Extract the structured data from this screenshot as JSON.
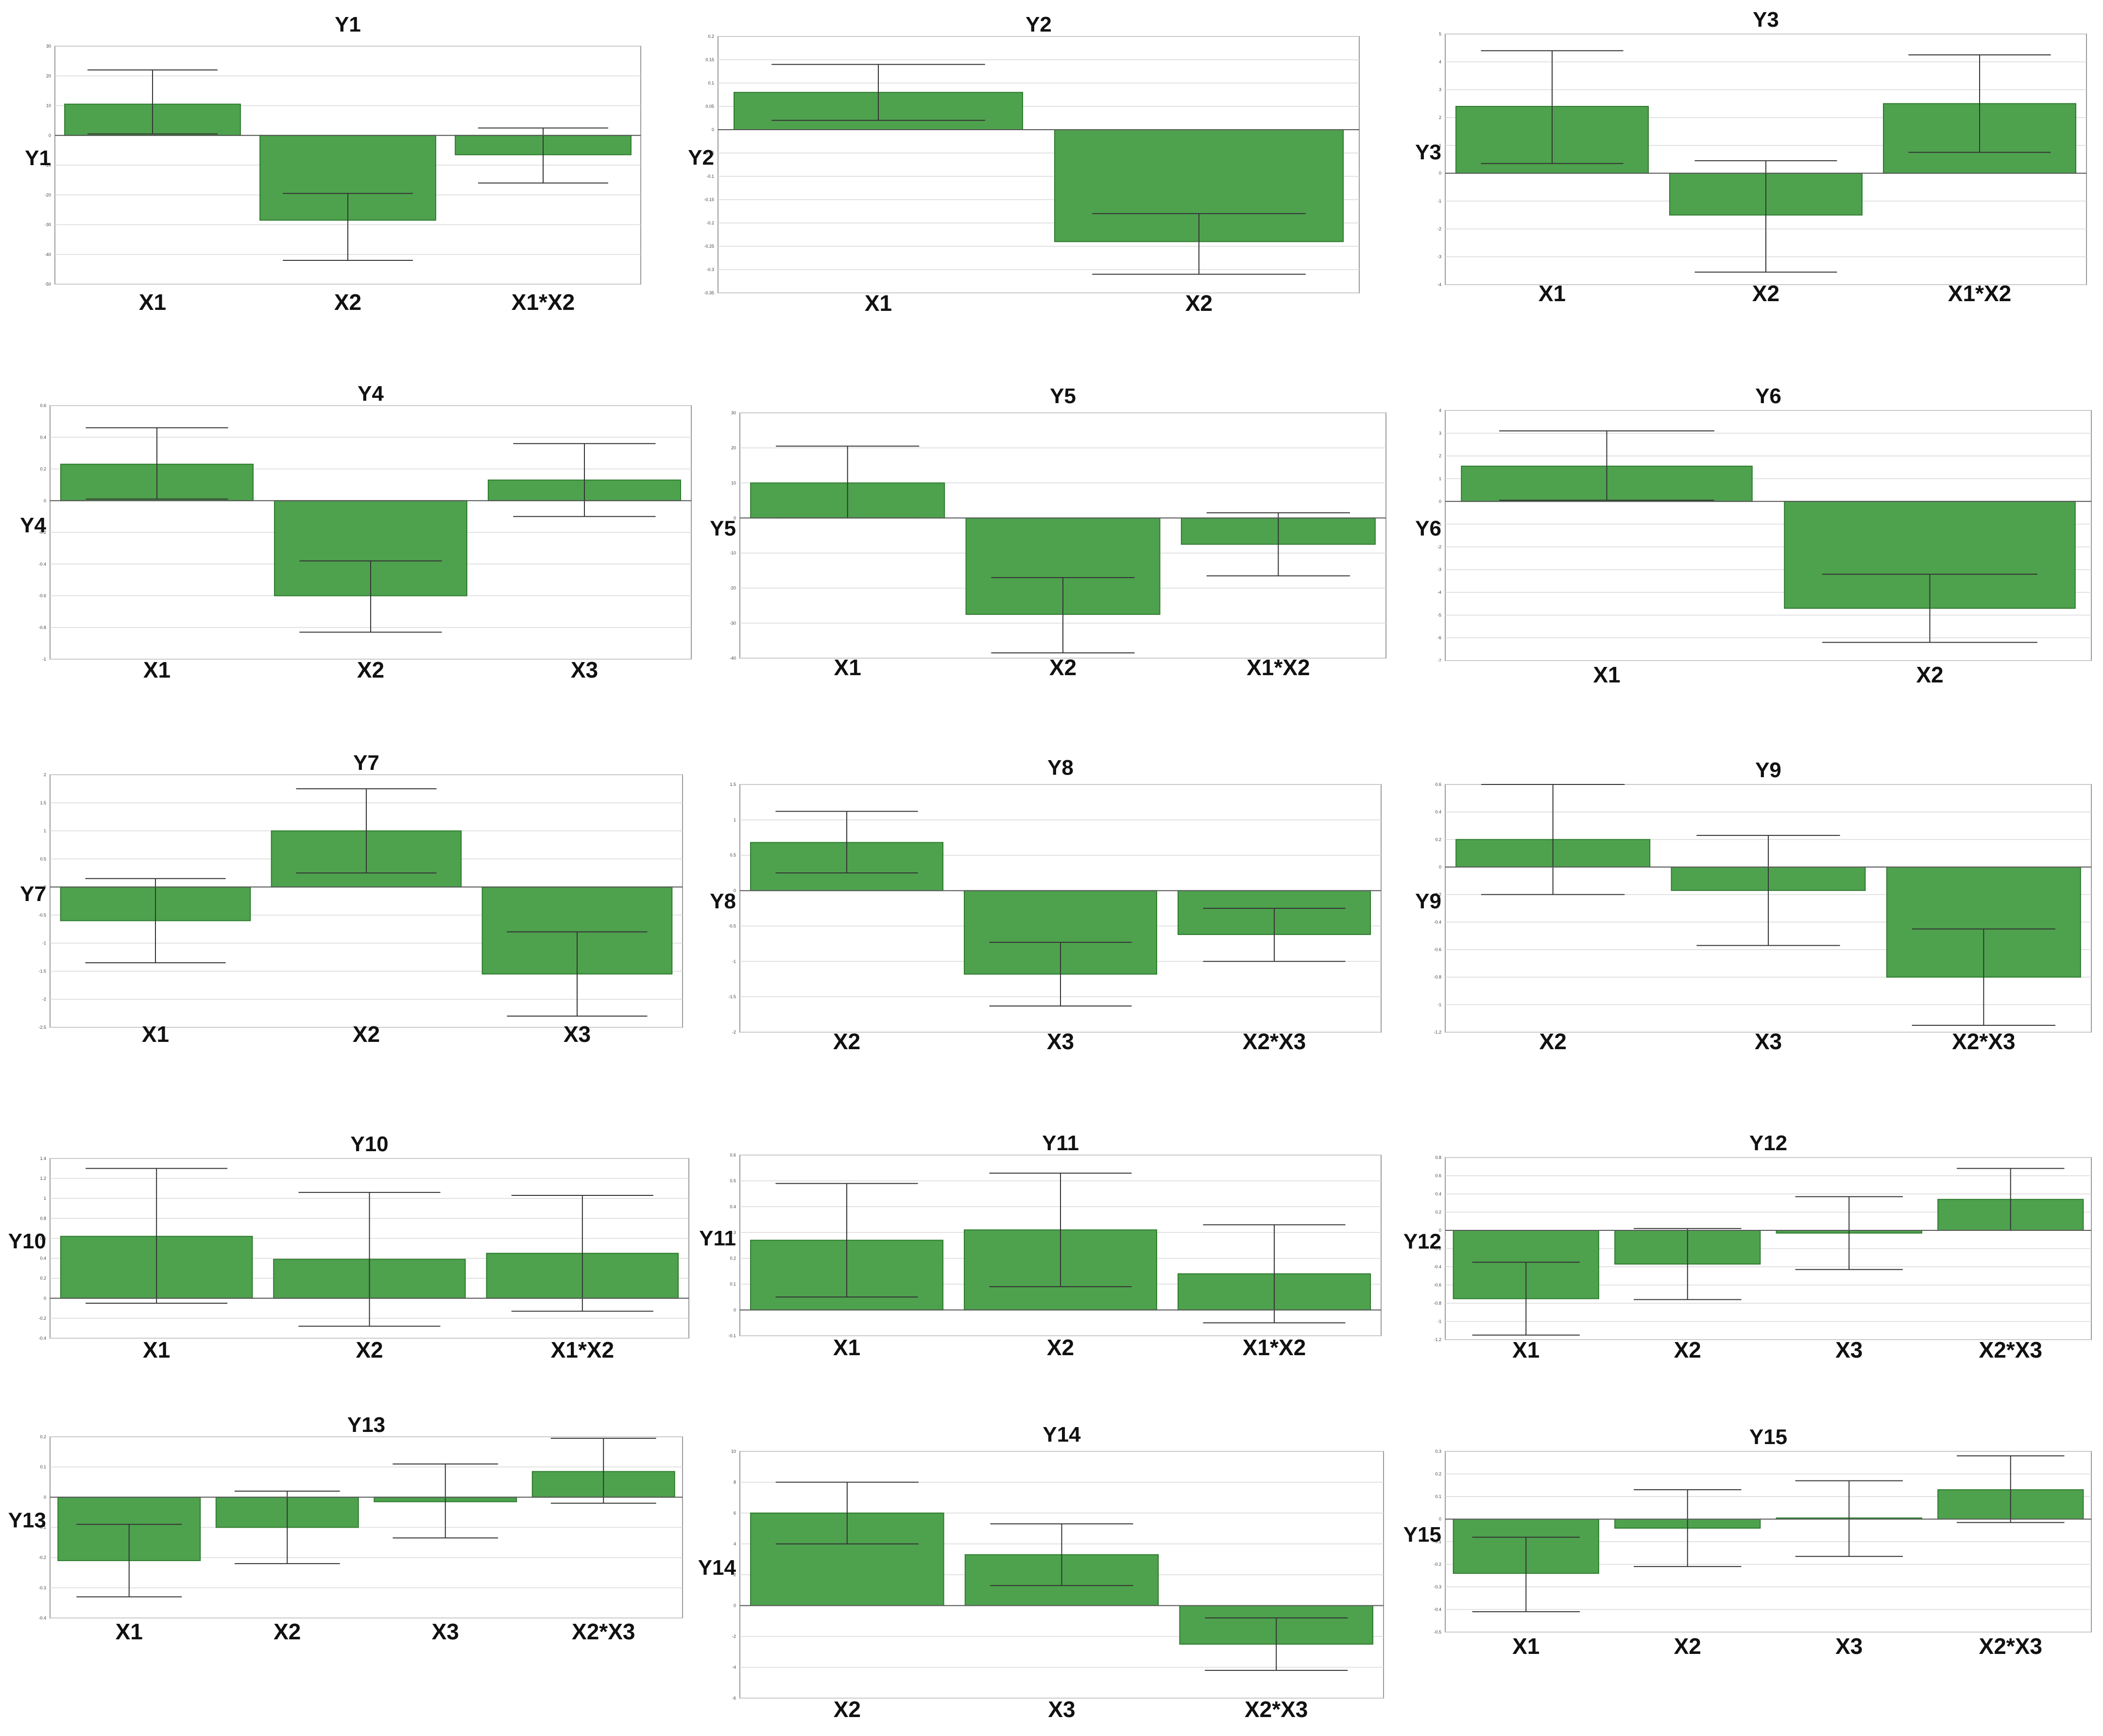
{
  "figure": {
    "bar_color": "#4ea24e",
    "bar_edge": "#2d7a2d",
    "error_color": "#333333",
    "grid_color": "#d9d9d9",
    "frame_color": "#9a9a9a"
  },
  "chart_data": [
    {
      "type": "bar",
      "title": "Y1",
      "ylabel": "Y1",
      "categories": [
        "X1",
        "X2",
        "X1*X2"
      ],
      "values": [
        10.5,
        -28.5,
        -6.5
      ],
      "errors": [
        [
          0.5,
          22
        ],
        [
          -42,
          -19.5
        ],
        [
          -16,
          2.5
        ]
      ],
      "ylim": [
        -50,
        30
      ],
      "yticks": [
        30,
        20,
        10,
        0,
        -10,
        -20,
        -30,
        -40,
        -50
      ]
    },
    {
      "type": "bar",
      "title": "Y2",
      "ylabel": "Y2",
      "categories": [
        "X1",
        "X2"
      ],
      "values": [
        0.08,
        -0.24
      ],
      "errors": [
        [
          0.02,
          0.14
        ],
        [
          -0.18,
          -0.31
        ]
      ],
      "ylim": [
        -0.35,
        0.2
      ],
      "yticks": [
        0.2,
        0.15,
        0.1,
        0.05,
        0,
        -0.05,
        -0.1,
        -0.15,
        -0.2,
        -0.25,
        -0.3,
        -0.35
      ]
    },
    {
      "type": "bar",
      "title": "Y3",
      "ylabel": "Y3",
      "categories": [
        "X1",
        "X2",
        "X1*X2"
      ],
      "values": [
        2.4,
        -1.5,
        2.5
      ],
      "errors": [
        [
          0.35,
          4.4
        ],
        [
          -3.55,
          0.45
        ],
        [
          0.75,
          4.25
        ]
      ],
      "ylim": [
        -4,
        5
      ],
      "yticks": [
        5,
        4,
        3,
        2,
        1,
        0,
        -1,
        -2,
        -3,
        -4
      ]
    },
    {
      "type": "bar",
      "title": "Y4",
      "ylabel": "Y4",
      "categories": [
        "X1",
        "X2",
        "X3"
      ],
      "values": [
        0.23,
        -0.6,
        0.13
      ],
      "errors": [
        [
          0.01,
          0.46
        ],
        [
          -0.83,
          -0.38
        ],
        [
          -0.1,
          0.36
        ]
      ],
      "ylim": [
        -1,
        0.6
      ],
      "yticks": [
        0.6,
        0.4,
        0.2,
        0,
        -0.2,
        -0.4,
        -0.6,
        -0.8,
        -1
      ]
    },
    {
      "type": "bar",
      "title": "Y5",
      "ylabel": "Y5",
      "categories": [
        "X1",
        "X2",
        "X1*X2"
      ],
      "values": [
        10,
        -27.5,
        -7.5
      ],
      "errors": [
        [
          0,
          20.5
        ],
        [
          -38.5,
          -17
        ],
        [
          -16.5,
          1.5
        ]
      ],
      "ylim": [
        -40,
        30
      ],
      "yticks": [
        30,
        20,
        10,
        0,
        -10,
        -20,
        -30,
        -40
      ]
    },
    {
      "type": "bar",
      "title": "Y6",
      "ylabel": "Y6",
      "categories": [
        "X1",
        "X2"
      ],
      "values": [
        1.55,
        -4.7
      ],
      "errors": [
        [
          0.05,
          3.1
        ],
        [
          -3.2,
          -6.2
        ]
      ],
      "ylim": [
        -7,
        4
      ],
      "yticks": [
        4,
        3,
        2,
        1,
        0,
        -1,
        -2,
        -3,
        -4,
        -5,
        -6,
        -7
      ]
    },
    {
      "type": "bar",
      "title": "Y7",
      "ylabel": "Y7",
      "categories": [
        "X1",
        "X2",
        "X3"
      ],
      "values": [
        -0.6,
        1.0,
        -1.55
      ],
      "errors": [
        [
          -1.35,
          0.15
        ],
        [
          0.25,
          1.75
        ],
        [
          -0.8,
          -2.3
        ]
      ],
      "ylim": [
        -2.5,
        2
      ],
      "yticks": [
        2,
        1.5,
        1,
        0.5,
        0,
        -0.5,
        -1,
        -1.5,
        -2,
        -2.5
      ]
    },
    {
      "type": "bar",
      "title": "Y8",
      "ylabel": "Y8",
      "categories": [
        "X2",
        "X3",
        "X2*X3"
      ],
      "values": [
        0.68,
        -1.18,
        -0.62
      ],
      "errors": [
        [
          0.25,
          1.12
        ],
        [
          -0.73,
          -1.63
        ],
        [
          -0.25,
          -1.0
        ]
      ],
      "ylim": [
        -2,
        1.5
      ],
      "yticks": [
        1.5,
        1,
        0.5,
        0,
        -0.5,
        -1,
        -1.5,
        -2
      ]
    },
    {
      "type": "bar",
      "title": "Y9",
      "ylabel": "Y9",
      "categories": [
        "X2",
        "X3",
        "X2*X3"
      ],
      "values": [
        0.2,
        -0.17,
        -0.8
      ],
      "errors": [
        [
          -0.2,
          0.6
        ],
        [
          -0.57,
          0.23
        ],
        [
          -0.45,
          -1.15
        ]
      ],
      "ylim": [
        -1.2,
        0.6
      ],
      "yticks": [
        0.6,
        0.4,
        0.2,
        0,
        -0.2,
        -0.4,
        -0.6,
        -0.8,
        -1,
        -1.2
      ]
    },
    {
      "type": "bar",
      "title": "Y10",
      "ylabel": "Y10",
      "categories": [
        "X1",
        "X2",
        "X1*X2"
      ],
      "values": [
        0.62,
        0.39,
        0.45
      ],
      "errors": [
        [
          -0.05,
          1.3
        ],
        [
          -0.28,
          1.06
        ],
        [
          -0.13,
          1.03
        ]
      ],
      "ylim": [
        -0.4,
        1.4
      ],
      "yticks": [
        1.4,
        1.2,
        1,
        0.8,
        0.6,
        0.4,
        0.2,
        0,
        -0.2,
        -0.4
      ]
    },
    {
      "type": "bar",
      "title": "Y11",
      "ylabel": "Y11",
      "categories": [
        "X1",
        "X2",
        "X1*X2"
      ],
      "values": [
        0.27,
        0.31,
        0.14
      ],
      "errors": [
        [
          0.05,
          0.49
        ],
        [
          0.09,
          0.53
        ],
        [
          -0.05,
          0.33
        ]
      ],
      "ylim": [
        -0.1,
        0.6
      ],
      "yticks": [
        0.6,
        0.5,
        0.4,
        0.3,
        0.2,
        0.1,
        0,
        -0.1
      ]
    },
    {
      "type": "bar",
      "title": "Y12",
      "ylabel": "Y12",
      "categories": [
        "X1",
        "X2",
        "X3",
        "X2*X3"
      ],
      "values": [
        -0.75,
        -0.37,
        -0.03,
        0.34
      ],
      "errors": [
        [
          -0.35,
          -1.15
        ],
        [
          0.02,
          -0.76
        ],
        [
          0.37,
          -0.43
        ],
        [
          0.68,
          0.0
        ]
      ],
      "ylim": [
        -1.2,
        0.8
      ],
      "yticks": [
        0.8,
        0.6,
        0.4,
        0.2,
        0,
        -0.2,
        -0.4,
        -0.6,
        -0.8,
        -1,
        -1.2
      ]
    },
    {
      "type": "bar",
      "title": "Y13",
      "ylabel": "Y13",
      "categories": [
        "X1",
        "X2",
        "X3",
        "X2*X3"
      ],
      "values": [
        -0.21,
        -0.1,
        -0.015,
        0.085
      ],
      "errors": [
        [
          -0.09,
          -0.33
        ],
        [
          0.02,
          -0.22
        ],
        [
          0.11,
          -0.135
        ],
        [
          0.195,
          -0.02
        ]
      ],
      "ylim": [
        -0.4,
        0.2
      ],
      "yticks": [
        0.2,
        0.1,
        0,
        -0.1,
        -0.2,
        -0.3,
        -0.4
      ]
    },
    {
      "type": "bar",
      "title": "Y14",
      "ylabel": "Y14",
      "categories": [
        "X2",
        "X3",
        "X2*X3"
      ],
      "values": [
        6.0,
        3.3,
        -2.5
      ],
      "errors": [
        [
          4.0,
          8.0
        ],
        [
          1.3,
          5.3
        ],
        [
          -0.8,
          -4.2
        ]
      ],
      "ylim": [
        -6,
        10
      ],
      "yticks": [
        10,
        8,
        6,
        4,
        2,
        0,
        -2,
        -4,
        -6
      ]
    },
    {
      "type": "bar",
      "title": "Y15",
      "ylabel": "Y15",
      "categories": [
        "X1",
        "X2",
        "X3",
        "X2*X3"
      ],
      "values": [
        -0.24,
        -0.04,
        0.005,
        0.13
      ],
      "errors": [
        [
          -0.08,
          -0.41
        ],
        [
          0.13,
          -0.21
        ],
        [
          0.17,
          -0.165
        ],
        [
          0.28,
          -0.015
        ]
      ],
      "ylim": [
        -0.5,
        0.3
      ],
      "yticks": [
        0.3,
        0.2,
        0.1,
        0,
        -0.1,
        -0.2,
        -0.3,
        -0.4,
        -0.5
      ]
    }
  ]
}
